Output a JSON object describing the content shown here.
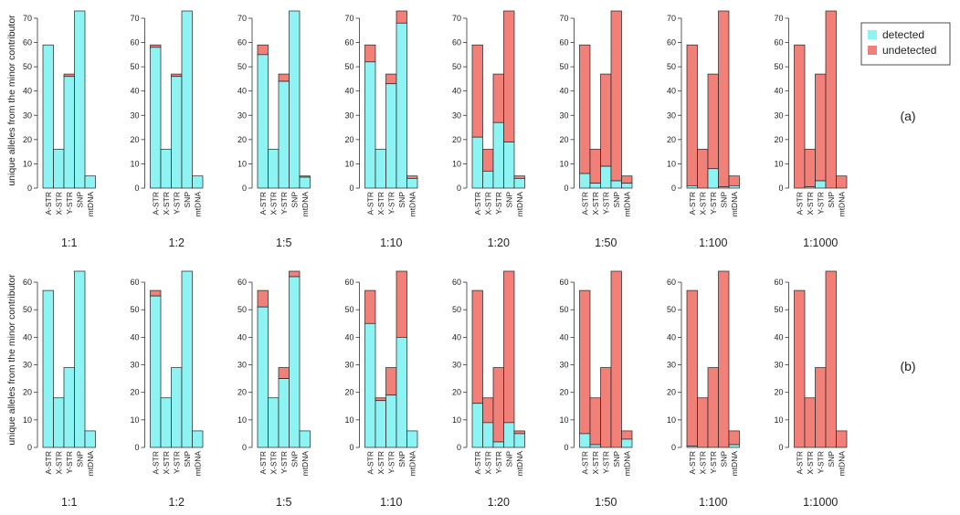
{
  "chart_data": {
    "type": "bar",
    "stacked": true,
    "categories": [
      "A-STR",
      "X-STR",
      "Y-STR",
      "SNP",
      "mtDNA"
    ],
    "ylabel": "unique alleles from the minor contributor",
    "legend": {
      "placement": "top-right",
      "items": [
        {
          "name": "detected",
          "color": "#8ef3f3"
        },
        {
          "name": "undetected",
          "color": "#f08078"
        }
      ]
    },
    "rows": [
      {
        "label": "(a)",
        "ylim": [
          0,
          73
        ],
        "yticks": [
          "0",
          "10",
          "20",
          "30",
          "40",
          "50",
          "60",
          "70"
        ],
        "ytick_values": [
          0,
          10,
          20,
          30,
          40,
          50,
          60,
          70
        ],
        "totals": [
          59,
          16,
          47,
          73,
          5
        ],
        "panels": [
          {
            "ratio": "1:1",
            "detected": [
              59,
              16,
              46,
              73,
              5
            ]
          },
          {
            "ratio": "1:2",
            "detected": [
              58,
              16,
              46,
              73,
              5
            ]
          },
          {
            "ratio": "1:5",
            "detected": [
              55,
              16,
              44,
              73,
              4.5
            ]
          },
          {
            "ratio": "1:10",
            "detected": [
              52,
              16,
              43,
              68,
              4
            ]
          },
          {
            "ratio": "1:20",
            "detected": [
              21,
              7,
              27,
              19,
              4
            ]
          },
          {
            "ratio": "1:50",
            "detected": [
              6,
              2,
              9,
              3,
              2
            ]
          },
          {
            "ratio": "1:100",
            "detected": [
              1,
              0,
              8,
              0.5,
              1
            ]
          },
          {
            "ratio": "1:1000",
            "detected": [
              0,
              0.5,
              3,
              0,
              0
            ]
          }
        ]
      },
      {
        "label": "(b)",
        "ylim": [
          0,
          64
        ],
        "yticks": [
          "0",
          "10",
          "20",
          "30",
          "40",
          "50",
          "60"
        ],
        "ytick_values": [
          0,
          10,
          20,
          30,
          40,
          50,
          60
        ],
        "totals": [
          57,
          18,
          29,
          64,
          6
        ],
        "panels": [
          {
            "ratio": "1:1",
            "detected": [
              57,
              18,
              29,
              64,
              6
            ]
          },
          {
            "ratio": "1:2",
            "detected": [
              55,
              18,
              29,
              64,
              6
            ]
          },
          {
            "ratio": "1:5",
            "detected": [
              51,
              18,
              25,
              62,
              6
            ]
          },
          {
            "ratio": "1:10",
            "detected": [
              45,
              17,
              19,
              40,
              6
            ]
          },
          {
            "ratio": "1:20",
            "detected": [
              16,
              9,
              2,
              9,
              5
            ]
          },
          {
            "ratio": "1:50",
            "detected": [
              5,
              1,
              0,
              0,
              3
            ]
          },
          {
            "ratio": "1:100",
            "detected": [
              0.5,
              0,
              0,
              0,
              1
            ]
          },
          {
            "ratio": "1:1000",
            "detected": [
              0,
              0,
              0,
              0,
              0
            ]
          }
        ]
      }
    ]
  }
}
